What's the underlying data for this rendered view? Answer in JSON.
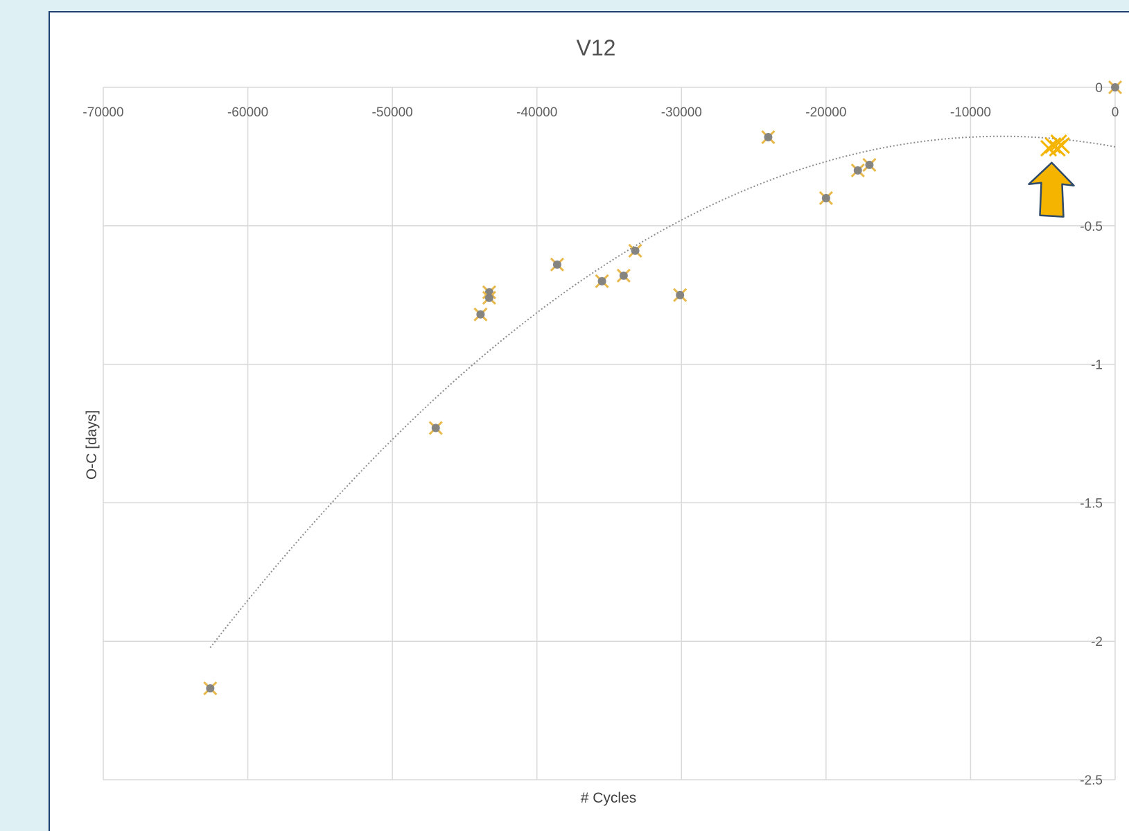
{
  "chart_data": {
    "type": "scatter",
    "title": "V12",
    "xlabel": "# Cycles",
    "ylabel": "O-C [days]",
    "xlim": [
      -70000,
      0
    ],
    "ylim": [
      -2.5,
      0
    ],
    "x_ticks": [
      -70000,
      -60000,
      -50000,
      -40000,
      -30000,
      -20000,
      -10000,
      0
    ],
    "x_tick_labels": [
      "-70000",
      "-60000",
      "-50000",
      "-40000",
      "-30000",
      "-20000",
      "-10000",
      "0"
    ],
    "y_ticks": [
      0,
      -0.5,
      -1,
      -1.5,
      -2,
      -2.5
    ],
    "y_tick_labels": [
      "0",
      "-0.5",
      "-1",
      "-1.5",
      "-2",
      "-2.5"
    ],
    "grid": true,
    "x_axis_position": "top",
    "y_axis_position": "right",
    "legend": "none",
    "series": [
      {
        "marker": "circle-with-x",
        "color": "#7f7f7f",
        "x": [
          -62600,
          -47000,
          -43900,
          -43300,
          -43300,
          -38600,
          -35500,
          -34000,
          -33200,
          -30100,
          -24000,
          -20000,
          -17800,
          -17000,
          0
        ],
        "y": [
          -2.17,
          -1.23,
          -0.82,
          -0.74,
          -0.76,
          -0.64,
          -0.7,
          -0.68,
          -0.59,
          -0.75,
          -0.18,
          -0.4,
          -0.3,
          -0.28,
          0.0
        ]
      },
      {
        "marker": "x",
        "color": "#f5b400",
        "x": [
          -4600,
          -4300,
          -4000,
          -3900,
          -3700
        ],
        "y": [
          -0.22,
          -0.21,
          -0.22,
          -0.2,
          -0.21
        ]
      }
    ],
    "trendline": {
      "style": "dotted",
      "kind": "polynomial",
      "x_range": [
        -62600,
        0
      ]
    },
    "annotation": {
      "type": "arrow",
      "color": "#f5b400"
    }
  }
}
